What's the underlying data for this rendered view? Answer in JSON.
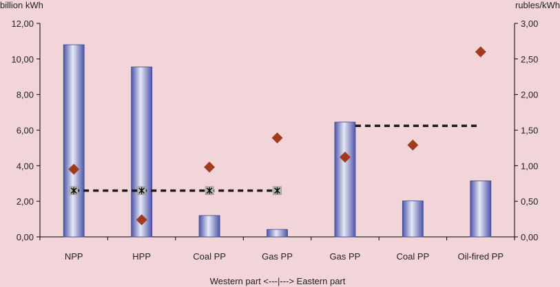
{
  "chart_data": {
    "type": "bar",
    "title": "",
    "xlabel": "Western part <---|---> Eastern part",
    "ylabel_left": "billion kWh",
    "ylabel_right": "rubles/kWh",
    "ylim_left": [
      0,
      12
    ],
    "ylim_right": [
      0,
      3
    ],
    "yticks_left": [
      "0,00",
      "2,00",
      "4,00",
      "6,00",
      "8,00",
      "10,00",
      "12,00"
    ],
    "yticks_right": [
      "0,00",
      "0,50",
      "1,00",
      "1,50",
      "2,00",
      "2,50",
      "3,00"
    ],
    "categories": [
      "NPP",
      "HPP",
      "Coal PP",
      "Gas PP",
      "Gas PP",
      "Coal PP",
      "Oil-fired PP"
    ],
    "series": [
      {
        "axis": "left",
        "style": "bar",
        "values": [
          10.8,
          9.55,
          1.2,
          0.42,
          6.45,
          2.02,
          3.15
        ]
      },
      {
        "axis": "right",
        "style": "diamond",
        "values": [
          0.95,
          0.24,
          0.98,
          1.39,
          1.12,
          1.29,
          2.6
        ]
      },
      {
        "axis": "right",
        "style": "dashed-line-markers",
        "values": [
          0.65,
          0.65,
          0.65,
          0.65,
          null,
          null,
          null
        ]
      },
      {
        "axis": "right",
        "style": "dashed-line",
        "values": [
          null,
          null,
          null,
          null,
          1.56,
          1.56,
          1.56
        ]
      }
    ],
    "grid": false,
    "legend": "none",
    "colors": {
      "background": "#f2d5d8",
      "bar_dark": "#4e56a8",
      "bar_light": "#e6e8f6",
      "diamond": "#a23a22",
      "dashed": "#1a1a1a",
      "marker_fill": "#b8b8b8",
      "axis": "#000000"
    }
  }
}
